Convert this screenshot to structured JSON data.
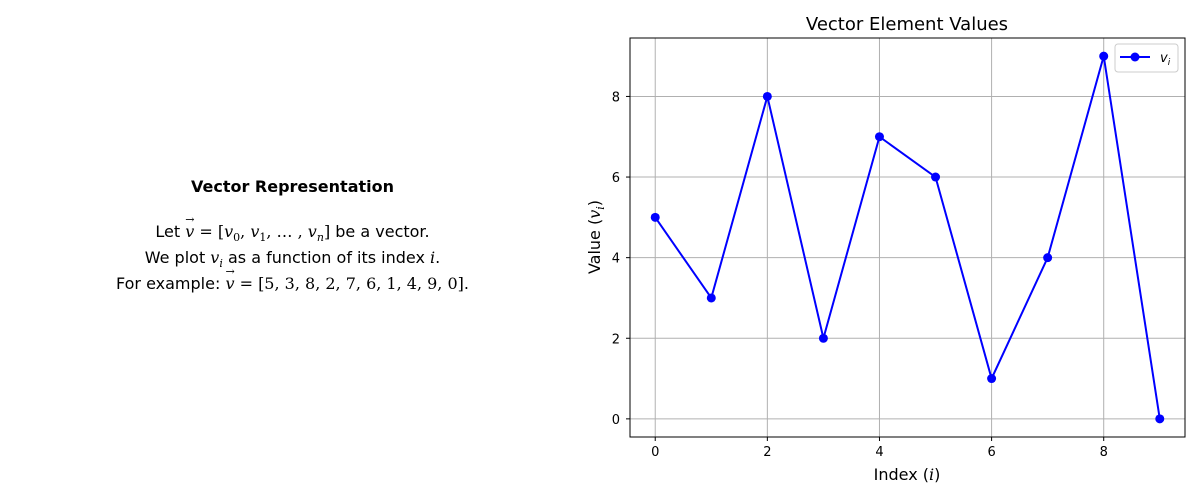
{
  "text_panel": {
    "heading": "Vector Representation",
    "line1": "Let v⃗ = [v₀, v₁, …, vₙ] be a vector.",
    "line2": "We plot vᵢ as a function of its index i.",
    "line3": "For example: v⃗ = [5, 3, 8, 2, 7, 6, 1, 4, 9, 0]."
  },
  "chart_data": {
    "type": "line",
    "title": "Vector Element Values",
    "xlabel": "Index (i)",
    "ylabel": "Value (vᵢ)",
    "x": [
      0,
      1,
      2,
      3,
      4,
      5,
      6,
      7,
      8,
      9
    ],
    "series": [
      {
        "name": "vᵢ",
        "values": [
          5,
          3,
          8,
          2,
          7,
          6,
          1,
          4,
          9,
          0
        ],
        "color": "#0000ff",
        "marker": "circle"
      }
    ],
    "xlim": [
      -0.45,
      9.45
    ],
    "ylim": [
      -0.45,
      9.45
    ],
    "xticks": [
      "0",
      "2",
      "4",
      "6",
      "8"
    ],
    "yticks": [
      "0",
      "2",
      "4",
      "6",
      "8"
    ],
    "grid": true,
    "legend": "top-right"
  }
}
